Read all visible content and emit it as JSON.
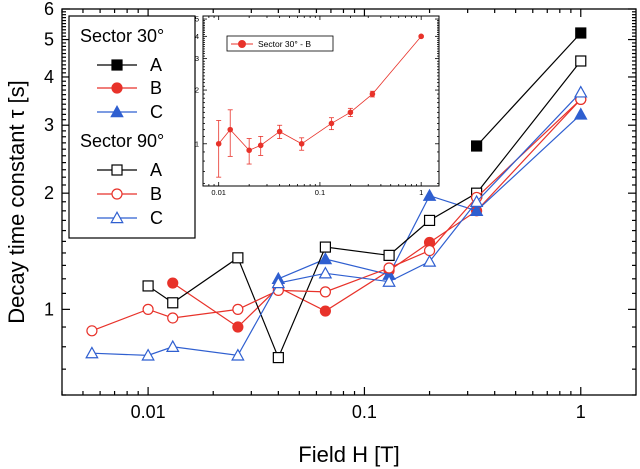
{
  "chart_data": [
    {
      "type": "line",
      "xlabel": "Field H [T]",
      "ylabel": "Decay time constant τ [s]",
      "xscale": "log",
      "yscale": "log",
      "xlim": [
        0.004,
        1.8
      ],
      "ylim": [
        0.6,
        6
      ],
      "x_tick_labels": [
        "0.01",
        "0.1",
        "1"
      ],
      "y_tick_labels": [
        "1",
        "2",
        "3",
        "4",
        "5",
        "6"
      ],
      "legend": {
        "placement": "top-left",
        "group_titles": [
          "Sector 30°",
          "Sector 90°"
        ]
      },
      "series": [
        {
          "name": "A",
          "group": "Sector 30°",
          "color": "#000000",
          "marker": "square",
          "filled": true,
          "x": [
            0.33,
            1.0
          ],
          "y": [
            2.65,
            5.2
          ]
        },
        {
          "name": "B",
          "group": "Sector 30°",
          "color": "#e8322a",
          "marker": "circle",
          "filled": true,
          "x": [
            0.013,
            0.026,
            0.04,
            0.066,
            0.13,
            0.2,
            0.33,
            1.0
          ],
          "y": [
            1.17,
            0.9,
            1.14,
            0.99,
            1.26,
            1.49,
            1.8,
            3.5
          ]
        },
        {
          "name": "C",
          "group": "Sector 30°",
          "color": "#2f5fd0",
          "marker": "triangle",
          "filled": true,
          "x": [
            0.04,
            0.066,
            0.13,
            0.2,
            0.33,
            1.0
          ],
          "y": [
            1.2,
            1.35,
            1.23,
            1.97,
            1.8,
            3.2
          ]
        },
        {
          "name": "A",
          "group": "Sector 90°",
          "color": "#000000",
          "marker": "square",
          "filled": false,
          "x": [
            0.01,
            0.013,
            0.026,
            0.04,
            0.066,
            0.13,
            0.2,
            0.33,
            1.0
          ],
          "y": [
            1.15,
            1.04,
            1.36,
            0.75,
            1.45,
            1.38,
            1.7,
            2.0,
            4.4
          ]
        },
        {
          "name": "B",
          "group": "Sector 90°",
          "color": "#e8322a",
          "marker": "circle",
          "filled": false,
          "x": [
            0.0055,
            0.01,
            0.013,
            0.026,
            0.04,
            0.066,
            0.13,
            0.2,
            0.33,
            1.0
          ],
          "y": [
            0.88,
            1.0,
            0.95,
            1.0,
            1.12,
            1.11,
            1.28,
            1.42,
            1.95,
            3.5
          ]
        },
        {
          "name": "C",
          "group": "Sector 90°",
          "color": "#2f5fd0",
          "marker": "triangle",
          "filled": false,
          "x": [
            0.0055,
            0.01,
            0.013,
            0.026,
            0.04,
            0.066,
            0.13,
            0.2,
            0.33,
            1.0
          ],
          "y": [
            0.77,
            0.76,
            0.8,
            0.76,
            1.17,
            1.24,
            1.18,
            1.33,
            1.9,
            3.65
          ]
        }
      ]
    },
    {
      "type": "line",
      "placement": "inset top-center",
      "xscale": "log",
      "yscale": "log",
      "xlim": [
        0.007,
        1.5
      ],
      "ylim": [
        0.58,
        5.2
      ],
      "x_tick_labels": [
        "0.01",
        "0.1",
        "1"
      ],
      "y_tick_labels": [
        "1",
        "2",
        "3",
        "4",
        "5"
      ],
      "legend": {
        "placement": "top-left"
      },
      "series": [
        {
          "name": "Sector 30° - B",
          "color": "#e8322a",
          "marker": "circle",
          "filled": true,
          "x": [
            0.01,
            0.013,
            0.02,
            0.026,
            0.04,
            0.066,
            0.13,
            0.2,
            0.33,
            1.0
          ],
          "y": [
            1.0,
            1.2,
            0.92,
            0.98,
            1.17,
            1.0,
            1.3,
            1.5,
            1.9,
            4.0
          ],
          "yerr": [
            0.35,
            0.35,
            0.15,
            0.12,
            0.1,
            0.08,
            0.1,
            0.08,
            0.07,
            0.05
          ]
        }
      ]
    }
  ]
}
